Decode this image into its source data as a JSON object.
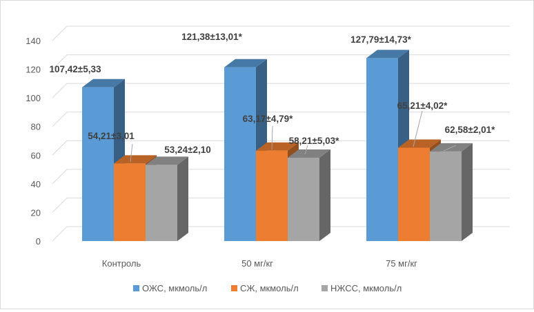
{
  "chart_data": {
    "type": "bar",
    "title": "",
    "xlabel": "",
    "ylabel": "",
    "ylim": [
      0,
      140
    ],
    "yticks": [
      0,
      20,
      40,
      60,
      80,
      100,
      120,
      140
    ],
    "grid": true,
    "three_d": true,
    "legend_position": "bottom",
    "categories": [
      "Контроль",
      "50 мг/кг",
      "75 мг/кг"
    ],
    "series": [
      {
        "name": "ОЖС, мкмоль/л",
        "color": "#5b9bd5",
        "values": [
          107.42,
          121.38,
          127.79
        ],
        "labels": [
          "107,42±5,33",
          "121,38±13,01*",
          "127,79±14,73*"
        ]
      },
      {
        "name": "СЖ, мкмоль/л",
        "color": "#ed7d31",
        "values": [
          54.21,
          63.17,
          65.21
        ],
        "labels": [
          "54,21±3,01",
          "63,17±4,79*",
          "65,21±4,02*"
        ]
      },
      {
        "name": "НЖСС, мкмоль/л",
        "color": "#a5a5a5",
        "values": [
          53.24,
          58.21,
          62.58
        ],
        "labels": [
          "53,24±2,10",
          "58,21±5,03*",
          "62,58±2,01*"
        ]
      }
    ]
  }
}
